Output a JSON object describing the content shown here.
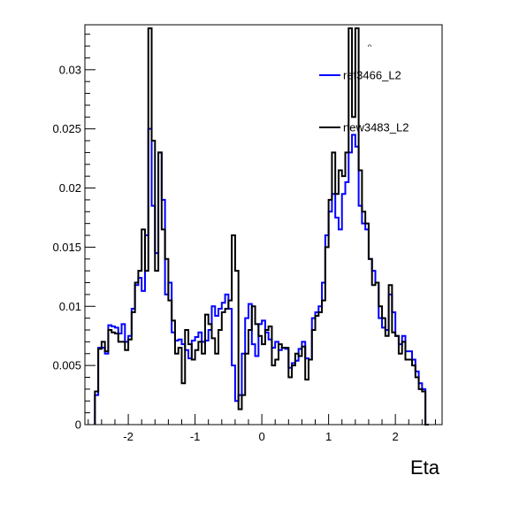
{
  "chart_data": {
    "type": "line",
    "title": "",
    "xlabel": "Eta",
    "ylabel": "",
    "xlim": [
      -2.65,
      2.7
    ],
    "ylim": [
      0,
      0.0338
    ],
    "grid": false,
    "legend": "top-right",
    "x_ticks": [
      -2,
      -1,
      0,
      1,
      2
    ],
    "x_tick_labels": [
      "-2",
      "-1",
      "0",
      "1",
      "2"
    ],
    "y_ticks": [
      0,
      0.005,
      0.01,
      0.015,
      0.02,
      0.025,
      0.03
    ],
    "y_tick_labels": [
      "0",
      "0.005",
      "0.01",
      "0.015",
      "0.02",
      "0.025",
      "0.03"
    ],
    "bins": {
      "start": -2.5,
      "width": 0.05,
      "count": 100
    },
    "series": [
      {
        "name": "ref3466_L2",
        "color": "#0000ff",
        "values": [
          0.0025,
          0.0065,
          0.0065,
          0.006,
          0.0084,
          0.0083,
          0.0082,
          0.0077,
          0.0085,
          0.007,
          0.0075,
          0.0098,
          0.0118,
          0.0124,
          0.0113,
          0.016,
          0.025,
          0.0185,
          0.0145,
          0.023,
          0.019,
          0.011,
          0.012,
          0.0078,
          0.0071,
          0.0072,
          0.0068,
          0.0063,
          0.0056,
          0.0071,
          0.0074,
          0.0078,
          0.007,
          0.0071,
          0.008,
          0.01,
          0.0092,
          0.0098,
          0.0103,
          0.011,
          0.0098,
          0.005,
          0.002,
          0.0025,
          0.006,
          0.009,
          0.0102,
          0.0068,
          0.0058,
          0.0085,
          0.0088,
          0.0078,
          0.0072,
          0.0065,
          0.007,
          0.0063,
          0.0065,
          0.0064,
          0.0048,
          0.0052,
          0.0054,
          0.0064,
          0.007,
          0.0056,
          0.0055,
          0.009,
          0.0095,
          0.01,
          0.012,
          0.016,
          0.018,
          0.0195,
          0.0175,
          0.0165,
          0.0195,
          0.0205,
          0.023,
          0.0245,
          0.0235,
          0.0185,
          0.017,
          0.0165,
          0.014,
          0.013,
          0.012,
          0.009,
          0.0082,
          0.008,
          0.011,
          0.0095,
          0.0075,
          0.0068,
          0.0075,
          0.0062,
          0.0062,
          0.0055,
          0.0045,
          0.0035,
          0.003,
          0.0
        ]
      },
      {
        "name": "new3483_L2",
        "color": "#000000",
        "values": [
          0.0028,
          0.0064,
          0.007,
          0.0062,
          0.008,
          0.0078,
          0.0077,
          0.007,
          0.007,
          0.0063,
          0.0072,
          0.0095,
          0.012,
          0.013,
          0.0165,
          0.013,
          0.0335,
          0.024,
          0.013,
          0.023,
          0.0165,
          0.014,
          0.0105,
          0.0088,
          0.006,
          0.0065,
          0.0035,
          0.008,
          0.0068,
          0.0055,
          0.0063,
          0.007,
          0.006,
          0.0093,
          0.0085,
          0.0073,
          0.006,
          0.008,
          0.0095,
          0.0098,
          0.0105,
          0.016,
          0.013,
          0.0013,
          0.0025,
          0.006,
          0.008,
          0.01,
          0.0085,
          0.0075,
          0.0068,
          0.008,
          0.0083,
          0.005,
          0.0055,
          0.0068,
          0.0065,
          0.0065,
          0.004,
          0.005,
          0.006,
          0.0058,
          0.0066,
          0.0038,
          0.0055,
          0.008,
          0.0092,
          0.0095,
          0.0105,
          0.015,
          0.019,
          0.023,
          0.0195,
          0.0215,
          0.021,
          0.023,
          0.0335,
          0.026,
          0.0335,
          0.0215,
          0.018,
          0.017,
          0.014,
          0.0118,
          0.012,
          0.01,
          0.009,
          0.0075,
          0.0118,
          0.0078,
          0.0075,
          0.006,
          0.007,
          0.0055,
          0.0055,
          0.005,
          0.004,
          0.003,
          0.0028,
          0.0
        ]
      }
    ],
    "annotations": [
      "ᵔ"
    ]
  }
}
